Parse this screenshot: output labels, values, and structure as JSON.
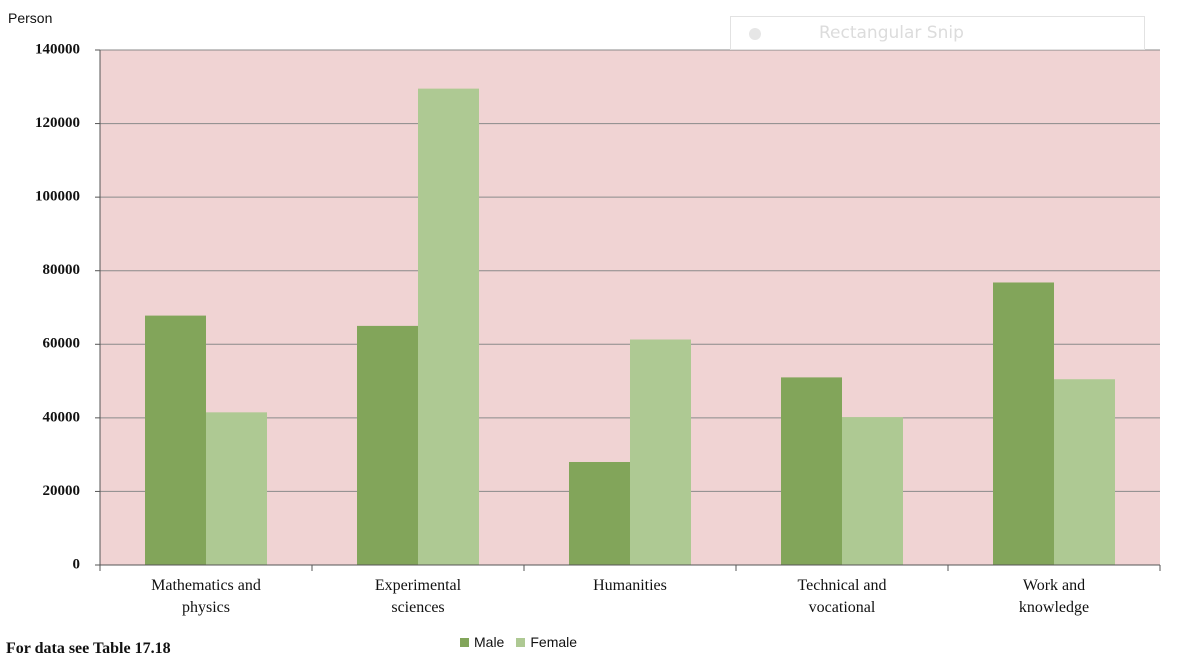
{
  "chart_data": {
    "type": "bar",
    "y_axis_label": "Person",
    "categories": [
      "Mathematics and\nphysics",
      "Experimental\nsciences",
      "Humanities",
      "Technical and\nvocational",
      "Work and\nknowledge"
    ],
    "series": [
      {
        "name": "Male",
        "color": "#82a55a",
        "values": [
          67800,
          65000,
          28000,
          51000,
          76800
        ]
      },
      {
        "name": "Female",
        "color": "#aec993",
        "values": [
          41500,
          129500,
          61300,
          40200,
          50500
        ]
      }
    ],
    "ylim": [
      0,
      140000
    ],
    "yticks": [
      0,
      20000,
      40000,
      60000,
      80000,
      100000,
      120000,
      140000
    ],
    "grid": true,
    "plot_background": "#f0d3d3",
    "legend": "bottom",
    "note": "For data see Table 17.18",
    "overlay_text": "Rectangular Snip"
  }
}
